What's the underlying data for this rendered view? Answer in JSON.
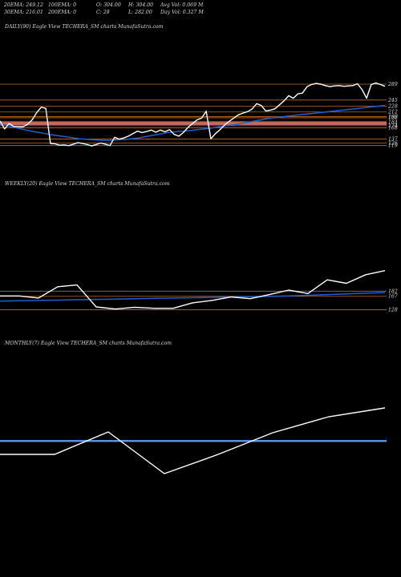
{
  "header": {
    "ema20": "20EMA: 249.12",
    "ema100": "100EMA: 0",
    "open": "O: 304.00",
    "high": "H: 304.00",
    "avg_vol": "Avg Vol: 0.069 M",
    "ema30": "30EMA: 216.01",
    "ema200": "200EMA: 0",
    "close": "C: 28",
    "low": "L: 282.00",
    "day_vol": "Day Vol: 0.327 M"
  },
  "colors": {
    "background": "#000000",
    "price_line": "#ffffff",
    "ema_line": "#1f5fd6",
    "level_line": "#c06a22",
    "highlight_band": "#e77a8a",
    "grid_line": "#777777",
    "monthly_level": "#5b8fe0"
  },
  "chart_data": [
    {
      "type": "line",
      "title": "DAILY(90) Eagle  View  TECHERA_SM charts MunafaSutra.com",
      "ylim": [
        105,
        300
      ],
      "levels": [
        289,
        245,
        228,
        212,
        199,
        196,
        184,
        174,
        168,
        137,
        126,
        119
      ],
      "series": [
        {
          "role": "price",
          "values": [
            187,
            165,
            180,
            172,
            171,
            171,
            178,
            190,
            210,
            225,
            222,
            125,
            124,
            120,
            121,
            119,
            123,
            127,
            125,
            122,
            118,
            122,
            126,
            123,
            119,
            142,
            137,
            140,
            145,
            152,
            159,
            155,
            158,
            162,
            156,
            162,
            157,
            163,
            150,
            145,
            155,
            169,
            180,
            190,
            195,
            214,
            138,
            152,
            163,
            176,
            186,
            195,
            204,
            209,
            213,
            220,
            235,
            230,
            215,
            217,
            221,
            232,
            243,
            257,
            250,
            262,
            264,
            282,
            288,
            291,
            289,
            285,
            282,
            284,
            285,
            283,
            284,
            285,
            290,
            274,
            250,
            288,
            292,
            288,
            283
          ]
        },
        {
          "role": "ema",
          "values": [
            180,
            172,
            166,
            160,
            155,
            150,
            146,
            142,
            138,
            136,
            134,
            133,
            135,
            137,
            140,
            145,
            150,
            155,
            158,
            160,
            163,
            166,
            170,
            174,
            178,
            183,
            188,
            193,
            197,
            200,
            203,
            206,
            209,
            212,
            215,
            218,
            221,
            224,
            227,
            230
          ]
        }
      ]
    },
    {
      "type": "line",
      "title": "WEEKLY(20) Eagle  View  TECHERA_SM charts MunafaSutra.com",
      "ylim": [
        115,
        330
      ],
      "levels": [
        182,
        167,
        128
      ],
      "series": [
        {
          "role": "price",
          "values": [
            168,
            168,
            162,
            195,
            200,
            136,
            130,
            135,
            132,
            132,
            148,
            155,
            165,
            160,
            172,
            185,
            175,
            215,
            205,
            230,
            242
          ]
        },
        {
          "role": "ema",
          "values": [
            153,
            154,
            155,
            156,
            157,
            158,
            159,
            160,
            161,
            162,
            163,
            164,
            165,
            166,
            167,
            168,
            170,
            172,
            174,
            176,
            178
          ]
        }
      ]
    },
    {
      "type": "line",
      "title": "MONTHLY(7) Eagle  View  TECHERA_SM charts MunafaSutra.com",
      "series": [
        {
          "role": "price",
          "values": [
            1,
            1,
            2,
            0,
            1,
            2,
            3,
            4
          ]
        }
      ]
    }
  ]
}
